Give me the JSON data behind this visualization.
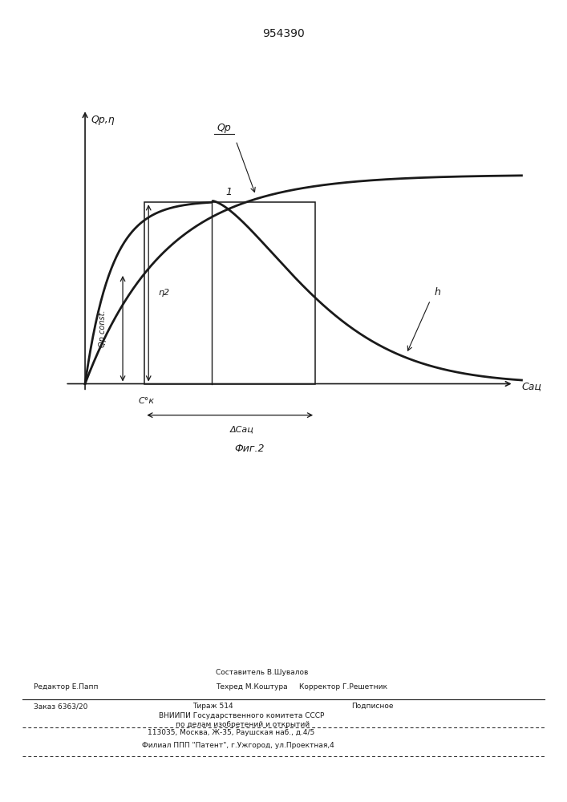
{
  "title": "954390",
  "fig_label": "Фиг.2",
  "ylabel": "Qр,η",
  "xlabel": "Cац",
  "curve_Qr_label": "Qр",
  "left_label": "Qр const.",
  "eta2_label": "η2",
  "ck_label": "C°к",
  "delta_label": "ΔCац",
  "intersection_label": "1",
  "h_label": "h",
  "bg_color": "#ffffff",
  "line_color": "#1a1a1a",
  "footer_line1_left": "Редактор Е.Папп",
  "footer_line1_center1": "Составитель В.Шувалов",
  "footer_line2_center1": "Техред М.Коштура",
  "footer_line2_right": "Корректор Г.Решетник",
  "footer_order": "Заказ 6363/20",
  "footer_tirazh": "Тираж 514",
  "footer_podp": "Подписное",
  "footer_vniip": "ВНИИПИ Государственного комитета СССР",
  "footer_dela": "по делам изобретений и открытий",
  "footer_addr": "113035, Москва, Ж-35, Раушская наб., д.4/5",
  "footer_filial": "Филиал ППП \"Патент\", г.Ужгород, ул.Проектная,4"
}
